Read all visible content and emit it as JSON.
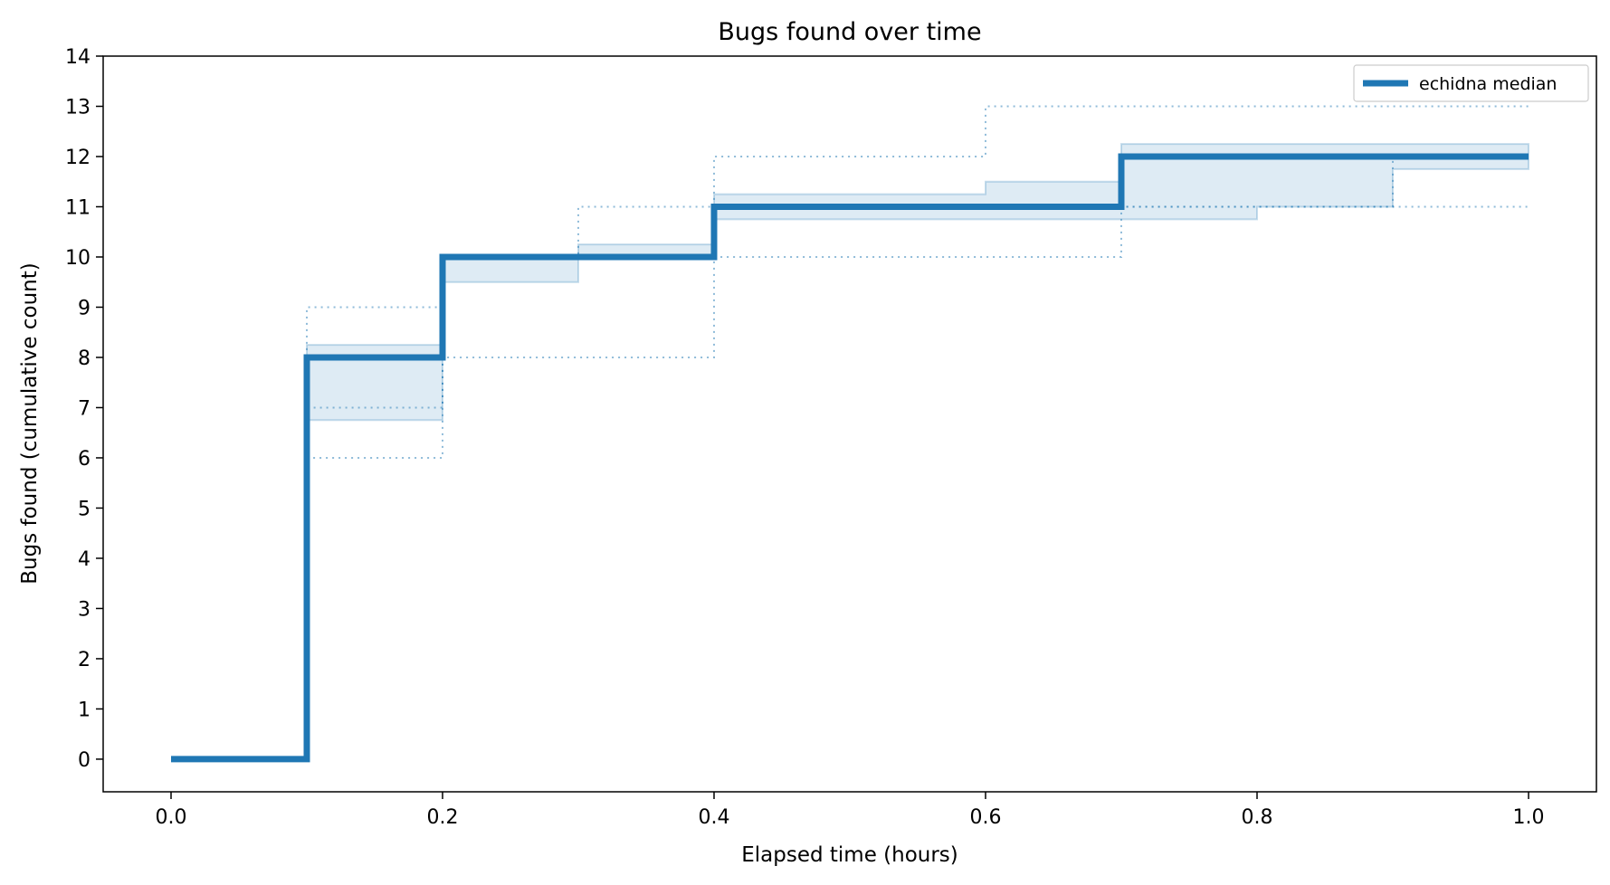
{
  "chart_data": {
    "type": "line",
    "step": "post",
    "title": "Bugs found over time",
    "xlabel": "Elapsed time (hours)",
    "ylabel": "Bugs found (cumulative count)",
    "xlim": [
      -0.05,
      1.05
    ],
    "ylim": [
      -0.65,
      14
    ],
    "xticks": [
      0.0,
      0.2,
      0.4,
      0.6,
      0.8,
      1.0
    ],
    "xtick_labels": [
      "0.0",
      "0.2",
      "0.4",
      "0.6",
      "0.8",
      "1.0"
    ],
    "yticks": [
      0,
      1,
      2,
      3,
      4,
      5,
      6,
      7,
      8,
      9,
      10,
      11,
      12,
      13,
      14
    ],
    "ytick_labels": [
      "0",
      "1",
      "2",
      "3",
      "4",
      "5",
      "6",
      "7",
      "8",
      "9",
      "10",
      "11",
      "12",
      "13",
      "14"
    ],
    "grid": false,
    "legend": {
      "position": "top-right",
      "entries": [
        "echidna median"
      ]
    },
    "colors": {
      "median": "#1f77b4",
      "band_fill": "#1f77b4",
      "run_lines": "#1f77b4"
    },
    "series": [
      {
        "name": "echidna median",
        "role": "median",
        "x": [
          0.0,
          0.1,
          0.2,
          0.3,
          0.4,
          0.5,
          0.6,
          0.7,
          0.8,
          0.9,
          1.0
        ],
        "y": [
          0,
          8,
          10,
          10,
          11,
          11,
          11,
          12,
          12,
          12,
          12
        ]
      },
      {
        "role": "iqr-band",
        "x": [
          0.0,
          0.1,
          0.2,
          0.3,
          0.4,
          0.5,
          0.6,
          0.7,
          0.8,
          0.9,
          1.0
        ],
        "lower": [
          0,
          6.75,
          9.5,
          10,
          10.75,
          10.75,
          10.75,
          10.75,
          11,
          11.75,
          11.75
        ],
        "upper": [
          0,
          8.25,
          10,
          10.25,
          11.25,
          11.25,
          11.5,
          12.25,
          12.25,
          12.25,
          12.25
        ]
      },
      {
        "role": "individual-run",
        "x": [
          0.0,
          0.1,
          0.2,
          0.3,
          0.4,
          0.5,
          0.6,
          0.7,
          0.8,
          0.9,
          1.0
        ],
        "y": [
          0,
          9,
          10,
          11,
          12,
          12,
          13,
          13,
          13,
          13,
          13
        ]
      },
      {
        "role": "individual-run",
        "x": [
          0.0,
          0.1,
          0.2,
          0.3,
          0.4,
          0.5,
          0.6,
          0.7,
          0.8,
          0.9,
          1.0
        ],
        "y": [
          0,
          7,
          8,
          8,
          10,
          10,
          10,
          11,
          11,
          11,
          11
        ]
      },
      {
        "role": "individual-run",
        "x": [
          0.0,
          0.1,
          0.2,
          0.3,
          0.4,
          0.5,
          0.6,
          0.7,
          0.8,
          0.9,
          1.0
        ],
        "y": [
          0,
          6,
          10,
          10,
          11,
          11,
          11,
          11,
          11,
          12,
          12
        ]
      }
    ]
  }
}
